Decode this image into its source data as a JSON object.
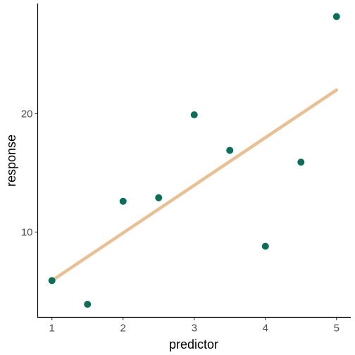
{
  "chart_data": {
    "type": "scatter",
    "title": "",
    "xlabel": "predictor",
    "ylabel": "response",
    "xlim": [
      0.8,
      5.2
    ],
    "ylim": [
      2.8,
      29.3
    ],
    "x_ticks": [
      1,
      2,
      3,
      4,
      5
    ],
    "y_ticks": [
      10,
      20
    ],
    "grid": false,
    "series": [
      {
        "type": "scatter",
        "color": "#0b6e58",
        "points": [
          {
            "x": 1.0,
            "y": 5.9
          },
          {
            "x": 1.5,
            "y": 3.9
          },
          {
            "x": 2.0,
            "y": 12.6
          },
          {
            "x": 2.5,
            "y": 12.9
          },
          {
            "x": 3.0,
            "y": 19.9
          },
          {
            "x": 3.5,
            "y": 16.9
          },
          {
            "x": 4.0,
            "y": 8.8
          },
          {
            "x": 4.5,
            "y": 15.9
          },
          {
            "x": 5.0,
            "y": 28.2
          }
        ]
      },
      {
        "type": "line",
        "color": "#e9bf94",
        "points": [
          {
            "x": 1.0,
            "y": 5.9
          },
          {
            "x": 5.0,
            "y": 22.0
          }
        ]
      }
    ]
  }
}
